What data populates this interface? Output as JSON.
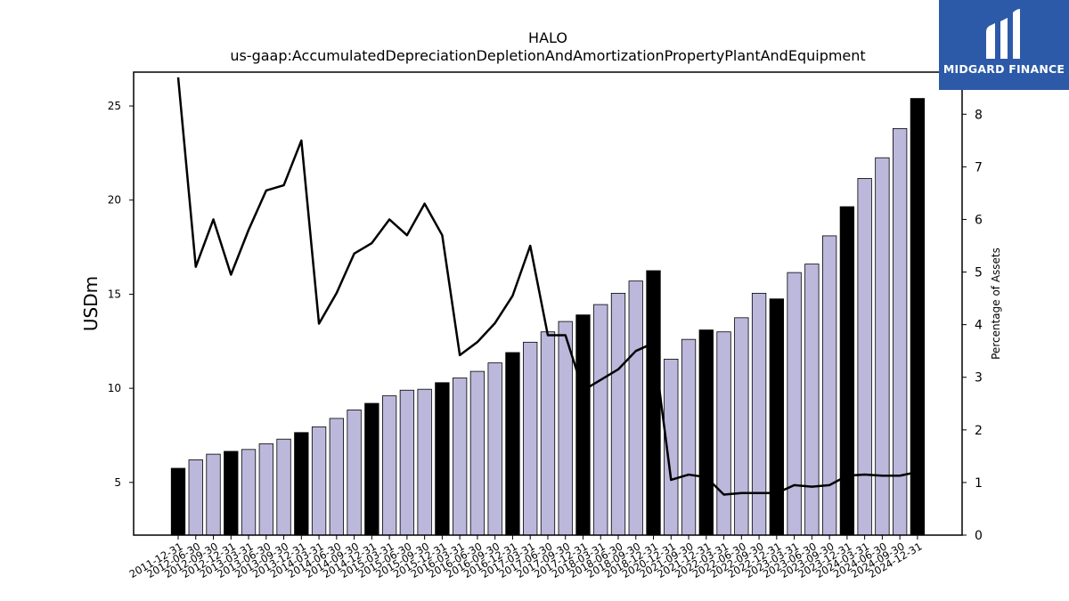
{
  "brand": {
    "name": "MIDGARD FINANCE",
    "color": "#2c5aa8"
  },
  "chart_data": {
    "type": "bar",
    "title": "HALO",
    "subtitle": "us-gaap:AccumulatedDepreciationDepletionAndAmortizationPropertyPlantAndEquipment",
    "ylabel": "USDm",
    "y2label": "Percentage of Assets",
    "ylim": [
      2.2,
      26.8
    ],
    "y2lim": [
      0,
      8.8
    ],
    "yticks": [
      5,
      10,
      15,
      20,
      25
    ],
    "y2ticks": [
      0,
      1,
      2,
      3,
      4,
      5,
      6,
      7,
      8
    ],
    "categories": [
      "2011-12-31",
      "2012-06-30",
      "2012-09-30",
      "2012-12-31",
      "2013-03-31",
      "2013-06-30",
      "2013-09-30",
      "2013-12-31",
      "2014-03-31",
      "2014-06-30",
      "2014-09-30",
      "2014-12-31",
      "2015-03-31",
      "2015-06-30",
      "2015-09-30",
      "2015-12-31",
      "2016-03-31",
      "2016-06-30",
      "2016-09-30",
      "2016-12-31",
      "2017-03-31",
      "2017-06-30",
      "2017-09-30",
      "2017-12-31",
      "2018-03-31",
      "2018-06-30",
      "2018-09-30",
      "2018-12-31",
      "2020-12-31",
      "2021-09-30",
      "2021-12-31",
      "2022-03-31",
      "2022-06-30",
      "2022-09-30",
      "2022-12-31",
      "2023-03-31",
      "2023-06-30",
      "2023-09-30",
      "2023-12-31",
      "2024-03-31",
      "2024-06-30",
      "2024-09-30",
      "2024-12-31"
    ],
    "series": [
      {
        "values": [
          5.75,
          6.2,
          6.5,
          6.65,
          6.75,
          7.05,
          7.3,
          7.65,
          7.95,
          8.4,
          8.85,
          9.2,
          9.6,
          9.9,
          9.95,
          10.3,
          10.55,
          10.9,
          11.35,
          11.9,
          12.45,
          13.0,
          13.55,
          13.9,
          14.45,
          15.05,
          15.7,
          16.25,
          11.55,
          12.6,
          13.1,
          13.0,
          13.75,
          15.05,
          14.75,
          16.15,
          16.6,
          18.1,
          19.65,
          21.15,
          22.25,
          23.8,
          25.4
        ],
        "annual": [
          true,
          false,
          false,
          true,
          false,
          false,
          false,
          true,
          false,
          false,
          false,
          true,
          false,
          false,
          false,
          true,
          false,
          false,
          false,
          true,
          false,
          false,
          false,
          true,
          false,
          false,
          false,
          true,
          false,
          false,
          true,
          false,
          false,
          false,
          true,
          false,
          false,
          false,
          true,
          false,
          false,
          false,
          true
        ],
        "color_quarter": "#bcb8dc",
        "color_annual": "#000000"
      },
      {
        "type": "line",
        "axis": "right",
        "color": "#000000",
        "values": [
          8.7,
          5.1,
          6.0,
          4.95,
          5.8,
          6.55,
          6.65,
          7.5,
          4.02,
          4.6,
          5.35,
          5.55,
          6.0,
          5.7,
          6.3,
          5.7,
          3.42,
          3.67,
          4.03,
          4.55,
          5.5,
          3.8,
          3.8,
          2.75,
          2.95,
          3.15,
          3.5,
          3.65,
          1.05,
          1.15,
          1.1,
          0.77,
          0.8,
          0.8,
          0.8,
          0.95,
          0.92,
          0.95,
          1.13,
          1.15,
          1.13,
          1.13,
          1.2
        ]
      }
    ]
  }
}
